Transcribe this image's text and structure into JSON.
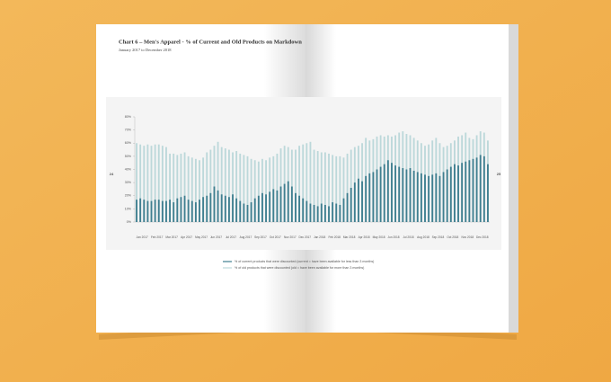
{
  "chart_data": {
    "type": "bar",
    "title": "Chart 6 – Men's Apparel - % of Current and Old Products on Markdown",
    "subtitle": "January 2017 to December 2018",
    "page_numbers": [
      "24",
      "25"
    ],
    "categories": [
      "Jan 2017",
      null,
      null,
      null,
      "Feb 2017",
      null,
      null,
      null,
      "Mar 2017",
      null,
      null,
      null,
      "Apr 2017",
      null,
      null,
      null,
      "May 2017",
      null,
      null,
      null,
      "Jun 2017",
      null,
      null,
      null,
      "Jul 2017",
      null,
      null,
      null,
      "Aug 2017",
      null,
      null,
      null,
      "Sep 2017",
      null,
      null,
      null,
      "Oct 2017",
      null,
      null,
      null,
      "Nov 2017",
      null,
      null,
      null,
      "Dec 2017",
      null,
      null,
      null,
      "Jan 2018",
      null,
      null,
      null,
      "Feb 2018",
      null,
      null,
      null,
      "Mar 2018",
      null,
      null,
      null,
      "Apr 2018",
      null,
      null,
      null,
      "May 2018",
      null,
      null,
      null,
      "Jun 2018",
      null,
      null,
      null,
      "Jul 2018",
      null,
      null,
      null,
      "Aug 2018",
      null,
      null,
      null,
      "Sep 2018",
      null,
      null,
      null,
      "Oct 2018",
      null,
      null,
      null,
      "Nov 2018",
      null,
      null,
      null,
      "Dec 2018",
      null,
      null,
      null
    ],
    "series": [
      {
        "name": "% of old products that were discounted (old = have been available for more than 3 months)",
        "color": "#bcd8da",
        "values": [
          60,
          59,
          58,
          59,
          58,
          59,
          59,
          58,
          57,
          52,
          52,
          51,
          52,
          53,
          50,
          49,
          48,
          47,
          49,
          53,
          55,
          58,
          61,
          57,
          56,
          55,
          53,
          54,
          52,
          51,
          50,
          48,
          47,
          46,
          48,
          47,
          49,
          50,
          52,
          56,
          58,
          57,
          55,
          55,
          58,
          59,
          60,
          61,
          55,
          54,
          53,
          53,
          52,
          51,
          50,
          50,
          49,
          52,
          55,
          57,
          58,
          60,
          64,
          62,
          63,
          65,
          66,
          65,
          66,
          65,
          66,
          68,
          69,
          67,
          66,
          64,
          62,
          60,
          58,
          59,
          62,
          64,
          60,
          57,
          58,
          60,
          62,
          65,
          66,
          68,
          64,
          63,
          66,
          69,
          68,
          62
        ]
      },
      {
        "name": "% of current products that were discounted (current = have been available for less than 3 months)",
        "color": "#3f7f90",
        "values": [
          17,
          18,
          17,
          16,
          16,
          17,
          17,
          16,
          16,
          17,
          15,
          18,
          19,
          20,
          17,
          16,
          15,
          17,
          19,
          20,
          22,
          27,
          24,
          21,
          20,
          19,
          21,
          18,
          16,
          14,
          13,
          15,
          18,
          20,
          22,
          21,
          23,
          25,
          24,
          27,
          29,
          31,
          27,
          22,
          20,
          18,
          16,
          14,
          13,
          12,
          14,
          13,
          12,
          15,
          14,
          13,
          18,
          22,
          26,
          30,
          33,
          31,
          35,
          37,
          38,
          40,
          42,
          44,
          47,
          45,
          43,
          42,
          41,
          40,
          41,
          39,
          38,
          37,
          36,
          35,
          36,
          37,
          35,
          38,
          40,
          42,
          44,
          43,
          45,
          46,
          47,
          48,
          49,
          51,
          50,
          44
        ]
      }
    ],
    "ylim": [
      0,
      80
    ],
    "yticks": [
      {
        "value": 0,
        "label": "0%"
      },
      {
        "value": 10,
        "label": "10%"
      },
      {
        "value": 20,
        "label": "20%"
      },
      {
        "value": 30,
        "label": "30%"
      },
      {
        "value": 40,
        "label": "40%"
      },
      {
        "value": 50,
        "label": "50%"
      },
      {
        "value": 60,
        "label": "60%"
      },
      {
        "value": 70,
        "label": "70%"
      },
      {
        "value": 80,
        "label": "80%"
      }
    ],
    "grid": false
  }
}
